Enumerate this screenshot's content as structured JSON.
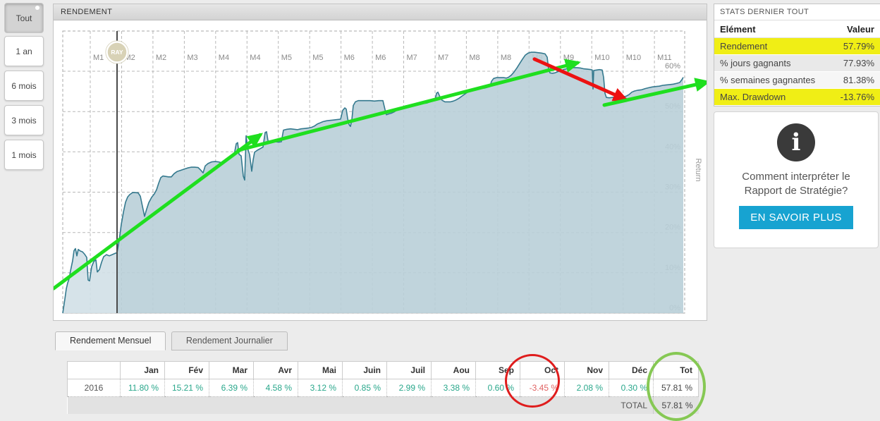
{
  "periods": {
    "items": [
      {
        "label": "Tout",
        "active": true
      },
      {
        "label": "1 an",
        "active": false
      },
      {
        "label": "6 mois",
        "active": false
      },
      {
        "label": "3 mois",
        "active": false
      },
      {
        "label": "1 mois",
        "active": false
      }
    ]
  },
  "chart": {
    "title": "RENDEMENT"
  },
  "stats": {
    "title": "STATS DERNIER TOUT",
    "col_element": "Elément",
    "col_valeur": "Valeur",
    "rows": [
      {
        "label": "Rendement",
        "value": "57.79%",
        "highlight": true
      },
      {
        "label": "% jours gagnants",
        "value": "77.93%",
        "highlight": false
      },
      {
        "label": "% semaines gagnantes",
        "value": "81.38%",
        "highlight": false
      },
      {
        "label": "Max. Drawdown",
        "value": "-13.76%",
        "highlight": true
      }
    ]
  },
  "info": {
    "icon": "i",
    "text": "Comment interpréter le Rapport de Stratégie?",
    "button": "EN SAVOIR PLUS"
  },
  "tabs": {
    "items": [
      {
        "label": "Rendement Mensuel",
        "active": true
      },
      {
        "label": "Rendement Journalier",
        "active": false
      }
    ]
  },
  "monthly_table": {
    "headers": [
      "",
      "Jan",
      "Fév",
      "Mar",
      "Avr",
      "Mai",
      "Juin",
      "Juil",
      "Aou",
      "Sep",
      "Oct",
      "Nov",
      "Déc",
      "Tot"
    ],
    "rows": [
      {
        "year": "2016",
        "values": [
          "11.80 %",
          "15.21 %",
          "6.39 %",
          "4.58 %",
          "3.12 %",
          "0.85 %",
          "2.99 %",
          "3.38 %",
          "0.60 %",
          "-3.45 %",
          "2.08 %",
          "0.30 %",
          "57.81 %"
        ]
      }
    ],
    "total_label": "TOTAL",
    "total_value": "57.81 %",
    "red_circled_column": "Oct",
    "green_circled_column": "Tot"
  },
  "chart_data": {
    "type": "area",
    "title": "RENDEMENT",
    "ylabel": "Return",
    "ylim": [
      0,
      65
    ],
    "grid": true,
    "y_ticks": [
      {
        "pct": 0,
        "label": "0%"
      },
      {
        "pct": 10,
        "label": "10%"
      },
      {
        "pct": 20,
        "label": "20%"
      },
      {
        "pct": 30,
        "label": "30%"
      },
      {
        "pct": 40,
        "label": "40%"
      },
      {
        "pct": 50,
        "label": "50%"
      },
      {
        "pct": 60,
        "label": "60%"
      }
    ],
    "x_tick_labels": [
      "M1",
      "M2",
      "M2",
      "M3",
      "M4",
      "M4",
      "M5",
      "M5",
      "M6",
      "M6",
      "M7",
      "M7",
      "M8",
      "M8",
      "M9",
      "M9",
      "M10",
      "M10",
      "M11"
    ],
    "marker": {
      "label": "RAY",
      "x": 165
    },
    "colors": {
      "line": "#34798e",
      "fill": "#b9cfd8",
      "fill_before_marker": "#d2e0e7",
      "green_arrow": "#1fdf1f",
      "red_arrow": "#ec1212"
    },
    "annotations": [
      {
        "type": "arrow",
        "color": "green",
        "from": [
          75,
          6.1
        ],
        "to": [
          368,
          44.2
        ]
      },
      {
        "type": "arrow",
        "color": "green",
        "from": [
          337,
          40.4
        ],
        "to": [
          818,
          62.1
        ]
      },
      {
        "type": "arrow",
        "color": "red",
        "from": [
          757,
          63.0
        ],
        "to": [
          886,
          53.0
        ]
      },
      {
        "type": "arrow",
        "color": "green",
        "from": [
          856,
          51.6
        ],
        "to": [
          1002,
          57.3
        ]
      }
    ],
    "series": [
      {
        "name": "Return",
        "points": [
          [
            88,
            0
          ],
          [
            91,
            3.5
          ],
          [
            93,
            6
          ],
          [
            95,
            7.5
          ],
          [
            97,
            8.5
          ],
          [
            99,
            10.5
          ],
          [
            102,
            13
          ],
          [
            104,
            15.5
          ],
          [
            106,
            16
          ],
          [
            108,
            14.2
          ],
          [
            110,
            15.8
          ],
          [
            113,
            15.4
          ],
          [
            116,
            15.2
          ],
          [
            119,
            14.6
          ],
          [
            122,
            13.8
          ],
          [
            124,
            8.2
          ],
          [
            126,
            8
          ],
          [
            129,
            11.5
          ],
          [
            132,
            12.8
          ],
          [
            135,
            13.2
          ],
          [
            137,
            10.2
          ],
          [
            140,
            10.8
          ],
          [
            143,
            12.6
          ],
          [
            146,
            14
          ],
          [
            150,
            14.5
          ],
          [
            154,
            14.2
          ],
          [
            158,
            14.5
          ],
          [
            162,
            14.8
          ],
          [
            165,
            15
          ],
          [
            168,
            18
          ],
          [
            171,
            22
          ],
          [
            174,
            25
          ],
          [
            177,
            27.5
          ],
          [
            180,
            28.8
          ],
          [
            183,
            29.4
          ],
          [
            187,
            29.9
          ],
          [
            191,
            29.9
          ],
          [
            195,
            29.8
          ],
          [
            198,
            29
          ],
          [
            201,
            26.5
          ],
          [
            204,
            24
          ],
          [
            207,
            25.8
          ],
          [
            210,
            27.4
          ],
          [
            214,
            28.7
          ],
          [
            218,
            29.6
          ],
          [
            221,
            30.6
          ],
          [
            224,
            32.2
          ],
          [
            227,
            33.6
          ],
          [
            230,
            34
          ],
          [
            234,
            33.9
          ],
          [
            238,
            33.8
          ],
          [
            242,
            33.8
          ],
          [
            246,
            34.6
          ],
          [
            250,
            35.1
          ],
          [
            255,
            35.4
          ],
          [
            260,
            35.7
          ],
          [
            265,
            36
          ],
          [
            270,
            36.2
          ],
          [
            275,
            36.2
          ],
          [
            280,
            36.1
          ],
          [
            284,
            35.4
          ],
          [
            287,
            34.8
          ],
          [
            290,
            36.5
          ],
          [
            294,
            37.1
          ],
          [
            299,
            37.5
          ],
          [
            304,
            37.6
          ],
          [
            309,
            37.5
          ],
          [
            314,
            37.3
          ],
          [
            318,
            37.7
          ],
          [
            322,
            38.3
          ],
          [
            327,
            38.8
          ],
          [
            331,
            39.2
          ],
          [
            334,
            42
          ],
          [
            336,
            42.3
          ],
          [
            338,
            39.4
          ],
          [
            341,
            39
          ],
          [
            344,
            34
          ],
          [
            346,
            33
          ],
          [
            348,
            44
          ],
          [
            350,
            41
          ],
          [
            353,
            39.3
          ],
          [
            356,
            35.2
          ],
          [
            358,
            38
          ],
          [
            360,
            39.9
          ],
          [
            364,
            40.4
          ],
          [
            368,
            40.8
          ],
          [
            372,
            41.2
          ],
          [
            375,
            44.8
          ],
          [
            377,
            45
          ],
          [
            379,
            42.8
          ],
          [
            382,
            42.4
          ],
          [
            386,
            42.4
          ],
          [
            390,
            42.5
          ],
          [
            394,
            42.4
          ],
          [
            398,
            42.5
          ],
          [
            401,
            45.4
          ],
          [
            406,
            45.6
          ],
          [
            411,
            45.7
          ],
          [
            416,
            45.6
          ],
          [
            421,
            45.5
          ],
          [
            426,
            45.7
          ],
          [
            431,
            45.8
          ],
          [
            436,
            45.9
          ],
          [
            441,
            46.1
          ],
          [
            445,
            46.4
          ],
          [
            449,
            46.9
          ],
          [
            453,
            47.2
          ],
          [
            457,
            47.5
          ],
          [
            462,
            47.7
          ],
          [
            467,
            47.8
          ],
          [
            472,
            47.9
          ],
          [
            477,
            48
          ],
          [
            482,
            48.1
          ],
          [
            485,
            50.3
          ],
          [
            488,
            50.9
          ],
          [
            490,
            50.6
          ],
          [
            492,
            48.3
          ],
          [
            494,
            46.8
          ],
          [
            496,
            46.3
          ],
          [
            498,
            48
          ],
          [
            500,
            51.5
          ],
          [
            503,
            52.4
          ],
          [
            507,
            52.7
          ],
          [
            512,
            52.7
          ],
          [
            518,
            52.7
          ],
          [
            524,
            52.7
          ],
          [
            530,
            52.6
          ],
          [
            536,
            52.7
          ],
          [
            542,
            52.7
          ],
          [
            545,
            50.5
          ],
          [
            547,
            49.2
          ],
          [
            550,
            49.4
          ],
          [
            554,
            49.6
          ],
          [
            558,
            49.9
          ],
          [
            562,
            50.4
          ],
          [
            566,
            50.9
          ],
          [
            570,
            51.1
          ],
          [
            574,
            51.4
          ],
          [
            579,
            51.5
          ],
          [
            584,
            51.7
          ],
          [
            589,
            51.8
          ],
          [
            594,
            51.9
          ],
          [
            599,
            52
          ],
          [
            604,
            52.1
          ],
          [
            609,
            52.4
          ],
          [
            613,
            52.6
          ],
          [
            616,
            52.8
          ],
          [
            618,
            54.5
          ],
          [
            620,
            54.8
          ],
          [
            623,
            53.6
          ],
          [
            626,
            52.8
          ],
          [
            630,
            52.4
          ],
          [
            634,
            52.4
          ],
          [
            638,
            52.4
          ],
          [
            642,
            52.6
          ],
          [
            646,
            52.9
          ],
          [
            650,
            53.3
          ],
          [
            654,
            53.8
          ],
          [
            658,
            54.3
          ],
          [
            662,
            54.8
          ],
          [
            666,
            55.2
          ],
          [
            670,
            55.6
          ],
          [
            674,
            55.7
          ],
          [
            678,
            55.9
          ],
          [
            682,
            55.9
          ],
          [
            686,
            55.8
          ],
          [
            690,
            56
          ],
          [
            694,
            56.2
          ],
          [
            696,
            57.5
          ],
          [
            699,
            58.2
          ],
          [
            703,
            58.4
          ],
          [
            708,
            58.4
          ],
          [
            713,
            58.4
          ],
          [
            717,
            58.3
          ],
          [
            720,
            58.5
          ],
          [
            724,
            59
          ],
          [
            728,
            59.8
          ],
          [
            732,
            60.8
          ],
          [
            736,
            61.9
          ],
          [
            740,
            63
          ],
          [
            744,
            64
          ],
          [
            748,
            64.5
          ],
          [
            752,
            64.7
          ],
          [
            757,
            64.7
          ],
          [
            762,
            64.6
          ],
          [
            767,
            64.5
          ],
          [
            772,
            64.3
          ],
          [
            775,
            63.5
          ],
          [
            777,
            60.5
          ],
          [
            779,
            59.6
          ],
          [
            782,
            59.5
          ],
          [
            786,
            59.6
          ],
          [
            790,
            59.9
          ],
          [
            794,
            60.1
          ],
          [
            798,
            60.4
          ],
          [
            802,
            60.6
          ],
          [
            807,
            60.8
          ],
          [
            812,
            60.9
          ],
          [
            817,
            60.9
          ],
          [
            822,
            60.8
          ],
          [
            827,
            60.6
          ],
          [
            832,
            60.5
          ],
          [
            837,
            60.4
          ],
          [
            839,
            60.3
          ],
          [
            840,
            55.6
          ],
          [
            841,
            60.2
          ],
          [
            845,
            60.3
          ],
          [
            849,
            60.4
          ],
          [
            853,
            60.3
          ],
          [
            855,
            58.5
          ],
          [
            857,
            54.5
          ],
          [
            859,
            53.5
          ],
          [
            863,
            53.4
          ],
          [
            867,
            53.5
          ],
          [
            871,
            53.6
          ],
          [
            875,
            53.7
          ],
          [
            879,
            53.8
          ],
          [
            883,
            53.7
          ],
          [
            887,
            53.8
          ],
          [
            891,
            54.2
          ],
          [
            895,
            54.8
          ],
          [
            899,
            55.1
          ],
          [
            904,
            55.3
          ],
          [
            909,
            55.4
          ],
          [
            914,
            55.7
          ],
          [
            919,
            55.9
          ],
          [
            924,
            56.1
          ],
          [
            929,
            56.2
          ],
          [
            934,
            56.3
          ],
          [
            939,
            56.5
          ],
          [
            944,
            56.6
          ],
          [
            949,
            56.7
          ],
          [
            954,
            56.8
          ],
          [
            959,
            57
          ],
          [
            963,
            57.2
          ],
          [
            966,
            57.9
          ],
          [
            968,
            58.5
          ]
        ]
      }
    ]
  }
}
